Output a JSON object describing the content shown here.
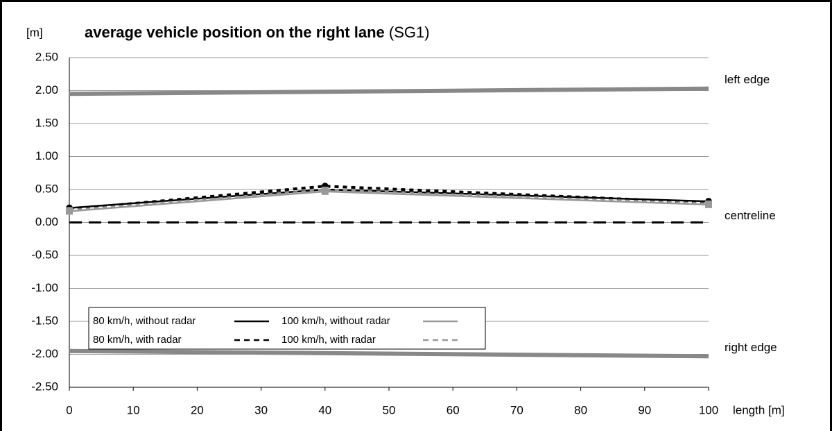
{
  "chart_data": {
    "type": "line",
    "title": "average vehicle position on the right lane",
    "subtitle": "(SG1)",
    "y_label": "[m]",
    "x_label": "length [m]",
    "x": [
      0,
      40,
      100
    ],
    "series": [
      {
        "name": "80 km/h, without radar",
        "color": "#000000",
        "dash": false,
        "marker": "circle",
        "values": [
          0.22,
          0.5,
          0.32
        ]
      },
      {
        "name": "100 km/h, without radar",
        "color": "#999999",
        "dash": false,
        "marker": "square",
        "values": [
          0.17,
          0.47,
          0.27
        ]
      },
      {
        "name": "80 km/h, with radar",
        "color": "#000000",
        "dash": true,
        "marker": "circle",
        "values": [
          0.2,
          0.55,
          0.3
        ]
      },
      {
        "name": "100 km/h, with radar",
        "color": "#999999",
        "dash": true,
        "marker": "square",
        "values": [
          0.18,
          0.49,
          0.28
        ]
      }
    ],
    "reference_lines": [
      {
        "label": "left edge",
        "color": "#888888",
        "dash": false,
        "x": [
          0,
          100
        ],
        "values": [
          1.95,
          2.03
        ]
      },
      {
        "label": "centreline",
        "color": "#000000",
        "dash": true,
        "x": [
          0,
          100
        ],
        "values": [
          0,
          0
        ]
      },
      {
        "label": "right edge",
        "color": "#888888",
        "dash": false,
        "x": [
          0,
          100
        ],
        "values": [
          -1.95,
          -2.03
        ]
      }
    ],
    "xlim": [
      0,
      100
    ],
    "xticks": [
      0,
      10,
      20,
      30,
      40,
      50,
      60,
      70,
      80,
      90,
      100
    ],
    "ylim": [
      -2.5,
      2.5
    ],
    "yticks": [
      {
        "value": 2.5,
        "label": "2.50"
      },
      {
        "value": 2,
        "label": "2.00"
      },
      {
        "value": 1.5,
        "label": "1.50"
      },
      {
        "value": 1,
        "label": "1.00"
      },
      {
        "value": 0.5,
        "label": "0.50"
      },
      {
        "value": 0,
        "label": "0.00"
      },
      {
        "value": -0.5,
        "label": "-0.50"
      },
      {
        "value": -1,
        "label": "-1.00"
      },
      {
        "value": -1.5,
        "label": "-1.50"
      },
      {
        "value": -2,
        "label": "-2.00"
      },
      {
        "value": -2.5,
        "label": "-2.50"
      }
    ],
    "grid": true
  }
}
